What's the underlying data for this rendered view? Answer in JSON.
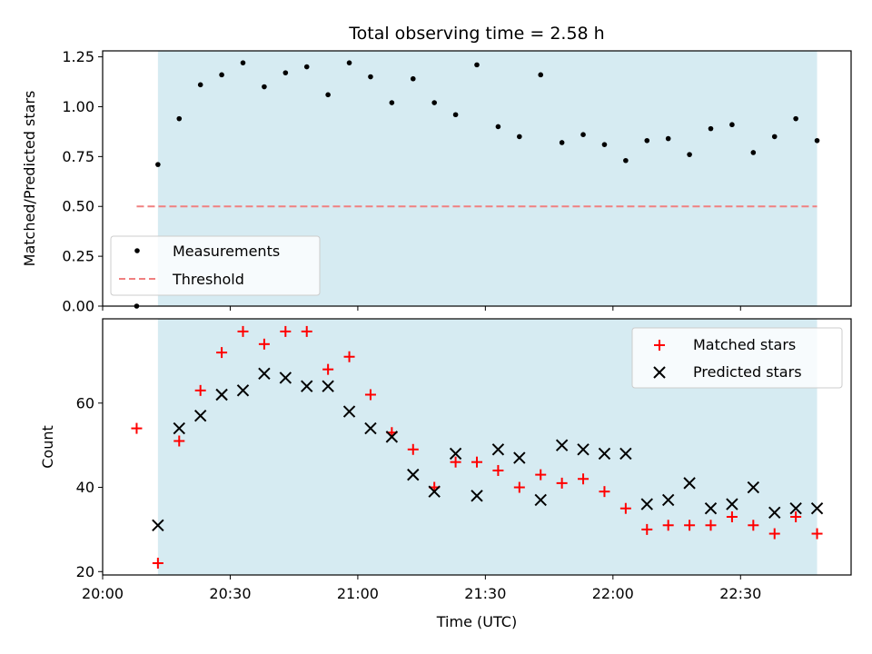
{
  "chart_data": [
    {
      "type": "scatter",
      "title": "Total observing time = 2.58 h",
      "xlabel": "",
      "ylabel": "Matched/Predicted stars",
      "ylim": [
        0,
        1.28
      ],
      "yticks": [
        "0.00",
        "0.25",
        "0.50",
        "0.75",
        "1.00",
        "1.25"
      ],
      "xlim_minutes": [
        0,
        176
      ],
      "shaded_range_minutes": [
        13,
        168
      ],
      "legend_position": "lower-left",
      "colors": {
        "measurements": "#000000",
        "threshold": "#f08080",
        "shade": "#add8e6"
      },
      "series": [
        {
          "name": "Measurements",
          "x_minutes": [
            8,
            13,
            18,
            23,
            28,
            33,
            38,
            43,
            48,
            53,
            58,
            63,
            68,
            73,
            78,
            83,
            88,
            93,
            98,
            103,
            108,
            113,
            118,
            123,
            128,
            133,
            138,
            143,
            148,
            153,
            158,
            163,
            168
          ],
          "values": [
            0.0,
            0.71,
            0.94,
            1.11,
            1.16,
            1.22,
            1.1,
            1.17,
            1.2,
            1.06,
            1.22,
            1.15,
            1.02,
            1.14,
            1.02,
            0.96,
            1.21,
            0.9,
            0.85,
            1.16,
            0.82,
            0.86,
            0.81,
            0.73,
            0.83,
            0.84,
            0.76,
            0.89,
            0.91,
            0.77,
            0.85,
            0.94,
            0.83
          ]
        },
        {
          "name": "Threshold",
          "x_minutes": [
            8,
            168
          ],
          "values": [
            0.5,
            0.5
          ]
        }
      ]
    },
    {
      "type": "scatter",
      "title": "",
      "xlabel": "Time (UTC)",
      "ylabel": "Count",
      "ylim": [
        19.2,
        80
      ],
      "yticks": [
        "20",
        "40",
        "60"
      ],
      "xticks": [
        "20:00",
        "20:30",
        "21:00",
        "21:30",
        "22:00",
        "22:30"
      ],
      "xlim_minutes": [
        0,
        176
      ],
      "shaded_range_minutes": [
        13,
        168
      ],
      "legend_position": "top-right",
      "colors": {
        "matched": "#ff0000",
        "predicted": "#000000",
        "shade": "#add8e6"
      },
      "series": [
        {
          "name": "Matched stars",
          "x_minutes": [
            8,
            13,
            18,
            23,
            28,
            33,
            38,
            43,
            48,
            53,
            58,
            63,
            68,
            73,
            78,
            83,
            88,
            93,
            98,
            103,
            108,
            113,
            118,
            123,
            128,
            133,
            138,
            143,
            148,
            153,
            158,
            163,
            168
          ],
          "values": [
            54,
            22,
            51,
            63,
            72,
            77,
            74,
            77,
            77,
            68,
            71,
            62,
            53,
            49,
            40,
            46,
            46,
            44,
            40,
            43,
            41,
            42,
            39,
            35,
            30,
            31,
            31,
            31,
            33,
            31,
            29,
            33,
            29
          ]
        },
        {
          "name": "Predicted stars",
          "x_minutes": [
            13,
            18,
            23,
            28,
            33,
            38,
            43,
            48,
            53,
            58,
            63,
            68,
            73,
            78,
            83,
            88,
            93,
            98,
            103,
            108,
            113,
            118,
            123,
            128,
            133,
            138,
            143,
            148,
            153,
            158,
            163,
            168
          ],
          "values": [
            31,
            54,
            57,
            62,
            63,
            67,
            66,
            64,
            64,
            58,
            54,
            52,
            43,
            39,
            48,
            38,
            49,
            47,
            37,
            50,
            49,
            48,
            48,
            36,
            37,
            41,
            35,
            36,
            40,
            34,
            35,
            35
          ]
        }
      ]
    }
  ]
}
